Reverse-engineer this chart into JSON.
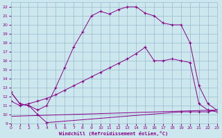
{
  "xlabel": "Windchill (Refroidissement éolien,°C)",
  "bg_color": "#cce8ee",
  "grid_color": "#99bbcc",
  "line_color": "#880088",
  "xlim": [
    0,
    23
  ],
  "ylim": [
    9,
    22.5
  ],
  "xticks": [
    0,
    1,
    2,
    3,
    4,
    5,
    6,
    7,
    8,
    9,
    10,
    11,
    12,
    13,
    14,
    15,
    16,
    17,
    18,
    19,
    20,
    21,
    22,
    23
  ],
  "yticks": [
    9,
    10,
    11,
    12,
    13,
    14,
    15,
    16,
    17,
    18,
    19,
    20,
    21,
    22
  ],
  "line1_x": [
    0,
    1,
    2,
    3,
    4,
    5,
    6,
    7,
    8,
    9,
    10,
    11,
    12,
    13,
    14,
    15,
    16,
    17,
    18,
    19,
    20,
    21,
    22,
    23
  ],
  "line1_y": [
    12.5,
    11.2,
    11.0,
    10.5,
    11.0,
    13.0,
    15.2,
    17.5,
    19.2,
    21.0,
    21.5,
    21.2,
    21.7,
    22.0,
    22.0,
    21.3,
    21.0,
    20.2,
    20.0,
    20.0,
    18.0,
    13.2,
    11.2,
    10.5
  ],
  "line2_x": [
    0,
    1,
    2,
    3,
    4,
    5,
    6,
    7,
    8,
    9,
    10,
    11,
    12,
    13,
    14,
    15,
    16,
    17,
    18,
    19,
    20,
    21,
    22,
    23
  ],
  "line2_y": [
    11.5,
    11.0,
    11.2,
    11.5,
    11.8,
    12.2,
    12.7,
    13.2,
    13.7,
    14.2,
    14.7,
    15.2,
    15.7,
    16.2,
    16.8,
    17.5,
    16.0,
    16.0,
    16.2,
    16.0,
    15.8,
    11.2,
    10.5,
    10.3
  ],
  "line3_x": [
    0,
    1,
    2,
    3,
    4,
    19,
    20,
    21,
    22,
    23
  ],
  "line3_y": [
    12.5,
    11.2,
    11.0,
    10.0,
    9.1,
    10.3,
    10.3,
    10.3,
    10.3,
    10.5
  ],
  "line4_x": [
    0,
    23
  ],
  "line4_y": [
    9.8,
    10.5
  ],
  "markersize": 2.5
}
